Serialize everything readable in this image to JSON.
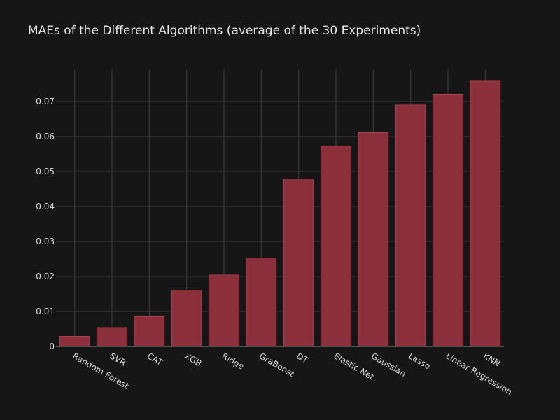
{
  "chart_data": {
    "type": "bar",
    "title": "MAEs of the Different Algorithms (average of the 30 Experiments)",
    "xlabel": "",
    "ylabel": "",
    "categories": [
      "Random Forest",
      "SVR",
      "CAT",
      "XGB",
      "Ridge",
      "GraBoost",
      "DT",
      "Elastic Net",
      "Gaussian",
      "Lasso",
      "Linear Regression",
      "KNN"
    ],
    "values": [
      0.0029,
      0.0054,
      0.0085,
      0.0161,
      0.0204,
      0.0253,
      0.0479,
      0.0572,
      0.0611,
      0.069,
      0.0719,
      0.0758
    ],
    "ylim": [
      0,
      0.079
    ],
    "yticks": [
      0,
      0.01,
      0.02,
      0.03,
      0.04,
      0.05,
      0.06,
      0.07
    ],
    "ytick_labels": [
      "0",
      "0.01",
      "0.02",
      "0.03",
      "0.04",
      "0.05",
      "0.06",
      "0.07"
    ],
    "grid": true,
    "colors": {
      "bar_fill": "#8b2f3b",
      "bar_stroke": "#a84150",
      "background": "#161616"
    }
  }
}
